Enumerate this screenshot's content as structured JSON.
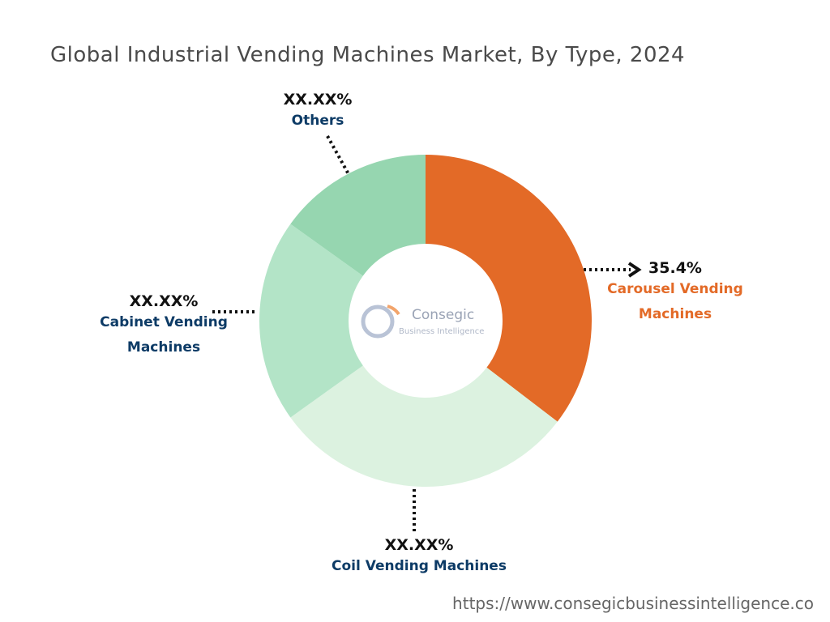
{
  "chart_data": {
    "type": "donut",
    "title": "Global Industrial Vending Machines Market, By Type, 2024",
    "categories": [
      "Carousel Vending Machines",
      "Coil Vending Machines",
      "Cabinet Vending Machines",
      "Others"
    ],
    "values": [
      35.4,
      29.7,
      19.8,
      15.1
    ],
    "value_labels": [
      "35.4%",
      "XX.XX%",
      "XX.XX%",
      "XX.XX%"
    ],
    "colors": [
      "#e36a27",
      "#dcf2e0",
      "#b3e4c7",
      "#96d6b0"
    ]
  },
  "logo": {
    "name": "Consegic",
    "tagline": "Business Intelligence"
  },
  "footer": "https://www.consegicbusinessintelligence.co"
}
